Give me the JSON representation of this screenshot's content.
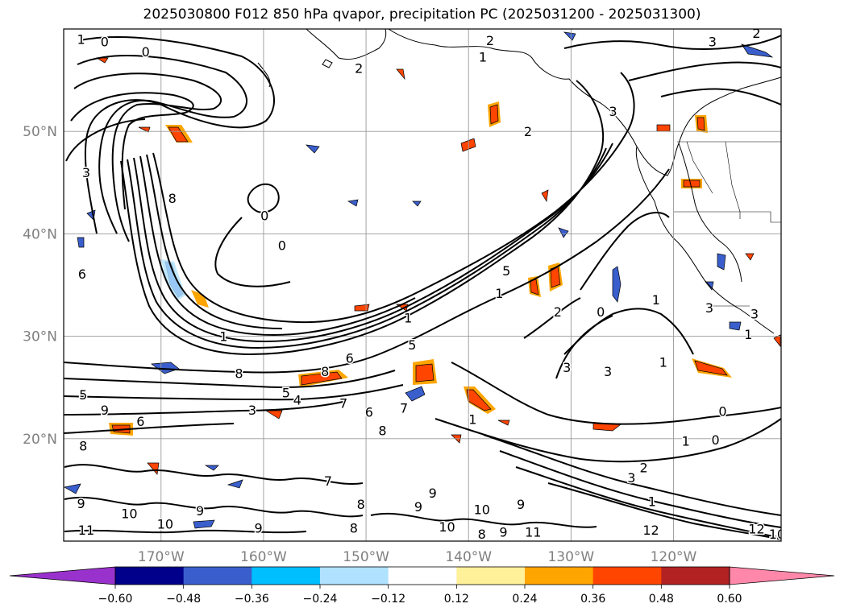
{
  "title": "2025030800 F012 850 hPa qvapor, precipitation PC (2025031200 - 2025031300)",
  "map": {
    "lon_range": [
      -179.5,
      -109.5
    ],
    "lat_range": [
      10,
      60
    ],
    "lat_ticks": [
      {
        "value": 20,
        "label": "20°N"
      },
      {
        "value": 30,
        "label": "30°N"
      },
      {
        "value": 40,
        "label": "40°N"
      },
      {
        "value": 50,
        "label": "50°N"
      }
    ],
    "lon_ticks": [
      {
        "value": -170,
        "label": "170°W"
      },
      {
        "value": -160,
        "label": "160°W"
      },
      {
        "value": -150,
        "label": "150°W"
      },
      {
        "value": -140,
        "label": "140°W"
      },
      {
        "value": -130,
        "label": "130°W"
      },
      {
        "value": -120,
        "label": "120°W"
      }
    ],
    "grid": true,
    "contour_color": "#000000",
    "coastline_color": "#000000"
  },
  "colorbar": {
    "extend": "both",
    "colors": [
      "#9932cc",
      "#00008b",
      "#3a5fcd",
      "#00bfff",
      "#b0e2ff",
      "#ffffff",
      "#fff09a",
      "#ffa500",
      "#ff4500",
      "#b22222",
      "#ff88aa"
    ],
    "boundaries": [
      -0.6,
      -0.48,
      -0.36,
      -0.24,
      -0.12,
      0.12,
      0.24,
      0.36,
      0.48,
      0.6
    ],
    "tick_labels": [
      "−0.60",
      "−0.48",
      "−0.36",
      "−0.24",
      "−0.12",
      "0.12",
      "0.24",
      "0.36",
      "0.48",
      "0.60"
    ]
  },
  "contour_labels": [
    {
      "text": "1",
      "lon": -177.8,
      "lat": 59.0
    },
    {
      "text": "0",
      "lon": -175.5,
      "lat": 58.8
    },
    {
      "text": "0",
      "lon": -171.5,
      "lat": 57.8
    },
    {
      "text": "2",
      "lon": -150.7,
      "lat": 56.2
    },
    {
      "text": "1",
      "lon": -138.6,
      "lat": 57.3
    },
    {
      "text": "2",
      "lon": -137.9,
      "lat": 58.9
    },
    {
      "text": "3",
      "lon": -116.2,
      "lat": 58.8
    },
    {
      "text": "2",
      "lon": -111.9,
      "lat": 59.6
    },
    {
      "text": "3",
      "lon": -125.9,
      "lat": 52.0
    },
    {
      "text": "2",
      "lon": -134.2,
      "lat": 50.0
    },
    {
      "text": "3",
      "lon": -177.3,
      "lat": 46.0
    },
    {
      "text": "8",
      "lon": -168.9,
      "lat": 43.5
    },
    {
      "text": "0",
      "lon": -159.9,
      "lat": 41.8
    },
    {
      "text": "0",
      "lon": -158.2,
      "lat": 38.9
    },
    {
      "text": "6",
      "lon": -177.7,
      "lat": 36.1
    },
    {
      "text": "5",
      "lon": -136.3,
      "lat": 36.4
    },
    {
      "text": "1",
      "lon": -137.0,
      "lat": 34.2
    },
    {
      "text": "1",
      "lon": -163.9,
      "lat": 30.0
    },
    {
      "text": "2",
      "lon": -131.3,
      "lat": 32.4
    },
    {
      "text": "0",
      "lon": -127.1,
      "lat": 32.4
    },
    {
      "text": "1",
      "lon": -145.9,
      "lat": 31.8
    },
    {
      "text": "1",
      "lon": -121.7,
      "lat": 33.6
    },
    {
      "text": "3",
      "lon": -116.5,
      "lat": 32.8
    },
    {
      "text": "3",
      "lon": -112.1,
      "lat": 32.2
    },
    {
      "text": "8",
      "lon": -162.4,
      "lat": 26.4
    },
    {
      "text": "8",
      "lon": -154.0,
      "lat": 26.6
    },
    {
      "text": "6",
      "lon": -151.6,
      "lat": 27.9
    },
    {
      "text": "5",
      "lon": -145.5,
      "lat": 29.2
    },
    {
      "text": "3",
      "lon": -130.4,
      "lat": 27.0
    },
    {
      "text": "3",
      "lon": -126.4,
      "lat": 26.6
    },
    {
      "text": "1",
      "lon": -121.0,
      "lat": 27.5
    },
    {
      "text": "1",
      "lon": -112.7,
      "lat": 30.2
    },
    {
      "text": "5",
      "lon": -157.8,
      "lat": 24.5
    },
    {
      "text": "4",
      "lon": -156.7,
      "lat": 23.8
    },
    {
      "text": "7",
      "lon": -152.2,
      "lat": 23.5
    },
    {
      "text": "6",
      "lon": -149.7,
      "lat": 22.6
    },
    {
      "text": "3",
      "lon": -161.1,
      "lat": 22.8
    },
    {
      "text": "9",
      "lon": -175.5,
      "lat": 22.8
    },
    {
      "text": "5",
      "lon": -177.6,
      "lat": 24.3
    },
    {
      "text": "6",
      "lon": -172.0,
      "lat": 21.7
    },
    {
      "text": "7",
      "lon": -146.3,
      "lat": 23.0
    },
    {
      "text": "8",
      "lon": -148.4,
      "lat": 20.8
    },
    {
      "text": "1",
      "lon": -139.6,
      "lat": 21.9
    },
    {
      "text": "0",
      "lon": -115.2,
      "lat": 22.7
    },
    {
      "text": "1",
      "lon": -118.8,
      "lat": 19.8
    },
    {
      "text": "0",
      "lon": -115.9,
      "lat": 19.9
    },
    {
      "text": "8",
      "lon": -177.6,
      "lat": 19.3
    },
    {
      "text": "3",
      "lon": -124.1,
      "lat": 16.2
    },
    {
      "text": "2",
      "lon": -122.9,
      "lat": 17.2
    },
    {
      "text": "7",
      "lon": -153.7,
      "lat": 15.9
    },
    {
      "text": "9",
      "lon": -143.5,
      "lat": 14.7
    },
    {
      "text": "1",
      "lon": -122.1,
      "lat": 13.9
    },
    {
      "text": "9",
      "lon": -177.8,
      "lat": 13.7
    },
    {
      "text": "10",
      "lon": -138.7,
      "lat": 13.1
    },
    {
      "text": "9",
      "lon": -134.9,
      "lat": 13.6
    },
    {
      "text": "11",
      "lon": -177.3,
      "lat": 11.1
    },
    {
      "text": "10",
      "lon": -169.6,
      "lat": 11.7
    },
    {
      "text": "10",
      "lon": -173.1,
      "lat": 12.7
    },
    {
      "text": "9",
      "lon": -166.2,
      "lat": 13.0
    },
    {
      "text": "9",
      "lon": -160.5,
      "lat": 11.3
    },
    {
      "text": "8",
      "lon": -151.2,
      "lat": 11.3
    },
    {
      "text": "10",
      "lon": -142.1,
      "lat": 11.4
    },
    {
      "text": "8",
      "lon": -138.7,
      "lat": 10.7
    },
    {
      "text": "9",
      "lon": -136.6,
      "lat": 10.9
    },
    {
      "text": "11",
      "lon": -133.7,
      "lat": 10.9
    },
    {
      "text": "12",
      "lon": -122.2,
      "lat": 11.1
    },
    {
      "text": "12",
      "lon": -111.9,
      "lat": 11.2
    },
    {
      "text": "10",
      "lon": -109.9,
      "lat": 10.7
    },
    {
      "text": "8",
      "lon": -150.5,
      "lat": 13.6
    },
    {
      "text": "9",
      "lon": -144.9,
      "lat": 13.4
    }
  ]
}
